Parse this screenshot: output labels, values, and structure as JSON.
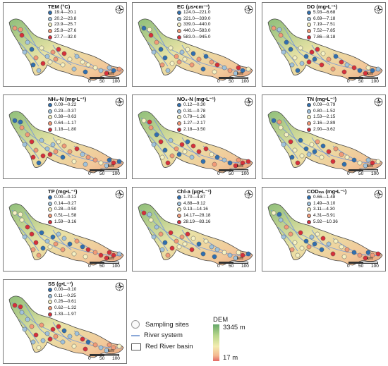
{
  "panels": [
    {
      "title": "TEM (°C)",
      "classes": [
        "19.4—20.1",
        "20.2—23.8",
        "23.9—25.7",
        "25.8—27.6",
        "27.7—32.0"
      ]
    },
    {
      "title": "EC (μs•cm⁻¹)",
      "classes": [
        "124.0—221.0",
        "221.0—339.0",
        "339.0—440.0",
        "440.0—583.0",
        "583.0—945.0"
      ]
    },
    {
      "title": "DO (mg•L⁻¹)",
      "classes": [
        "5.93—6.68",
        "6.69—7.18",
        "7.19—7.51",
        "7.52—7.85",
        "7.86—8.18"
      ]
    },
    {
      "title": "NH₃-N (mg•L⁻¹)",
      "classes": [
        "0.09—0.22",
        "0.23—0.37",
        "0.38—0.63",
        "0.64—1.17",
        "1.18—1.80"
      ]
    },
    {
      "title": "NO₃-N (mg•L⁻¹)",
      "classes": [
        "0.12—0.30",
        "0.31—0.78",
        "0.79—1.26",
        "1.27—2.17",
        "2.18—3.50"
      ]
    },
    {
      "title": "TN (mg•L⁻¹)",
      "classes": [
        "0.09—0.79",
        "0.80—1.52",
        "1.53—2.15",
        "2.16—2.89",
        "2.90—3.62"
      ]
    },
    {
      "title": "TP (mg•L⁻¹)",
      "classes": [
        "0.00—0.13",
        "0.14—0.27",
        "0.28—0.50",
        "0.51—1.58",
        "1.59—3.16"
      ]
    },
    {
      "title": "Chl-a (μg•L⁻¹)",
      "classes": [
        "1.70—4.87",
        "4.88—9.12",
        "9.13—14.16",
        "14.17—28.18",
        "28.19—83.16"
      ]
    },
    {
      "title": "CODₘₙ (mg•L⁻¹)",
      "classes": [
        "0.66—1.48",
        "1.49—3.10",
        "3.11—4.30",
        "4.31—5.91",
        "5.92—10.36"
      ]
    },
    {
      "title": "SS (g•L⁻¹)",
      "classes": [
        "0.00—0.10",
        "0.11—0.25",
        "0.26—0.61",
        "0.62—1.32",
        "1.33—1.97"
      ]
    }
  ],
  "class_colors": [
    "#2f6fb0",
    "#9fc2dc",
    "#f6f2c4",
    "#f29a78",
    "#d7303a"
  ],
  "scale": {
    "km": "km",
    "ticks": [
      "0",
      "50",
      "100"
    ]
  },
  "legend": {
    "sampling_sites": "Sampling sites",
    "river_system": "River system",
    "basin": "Red River basin",
    "dem_title": "DEM",
    "dem_high": "3345 m",
    "dem_low": "17 m"
  }
}
